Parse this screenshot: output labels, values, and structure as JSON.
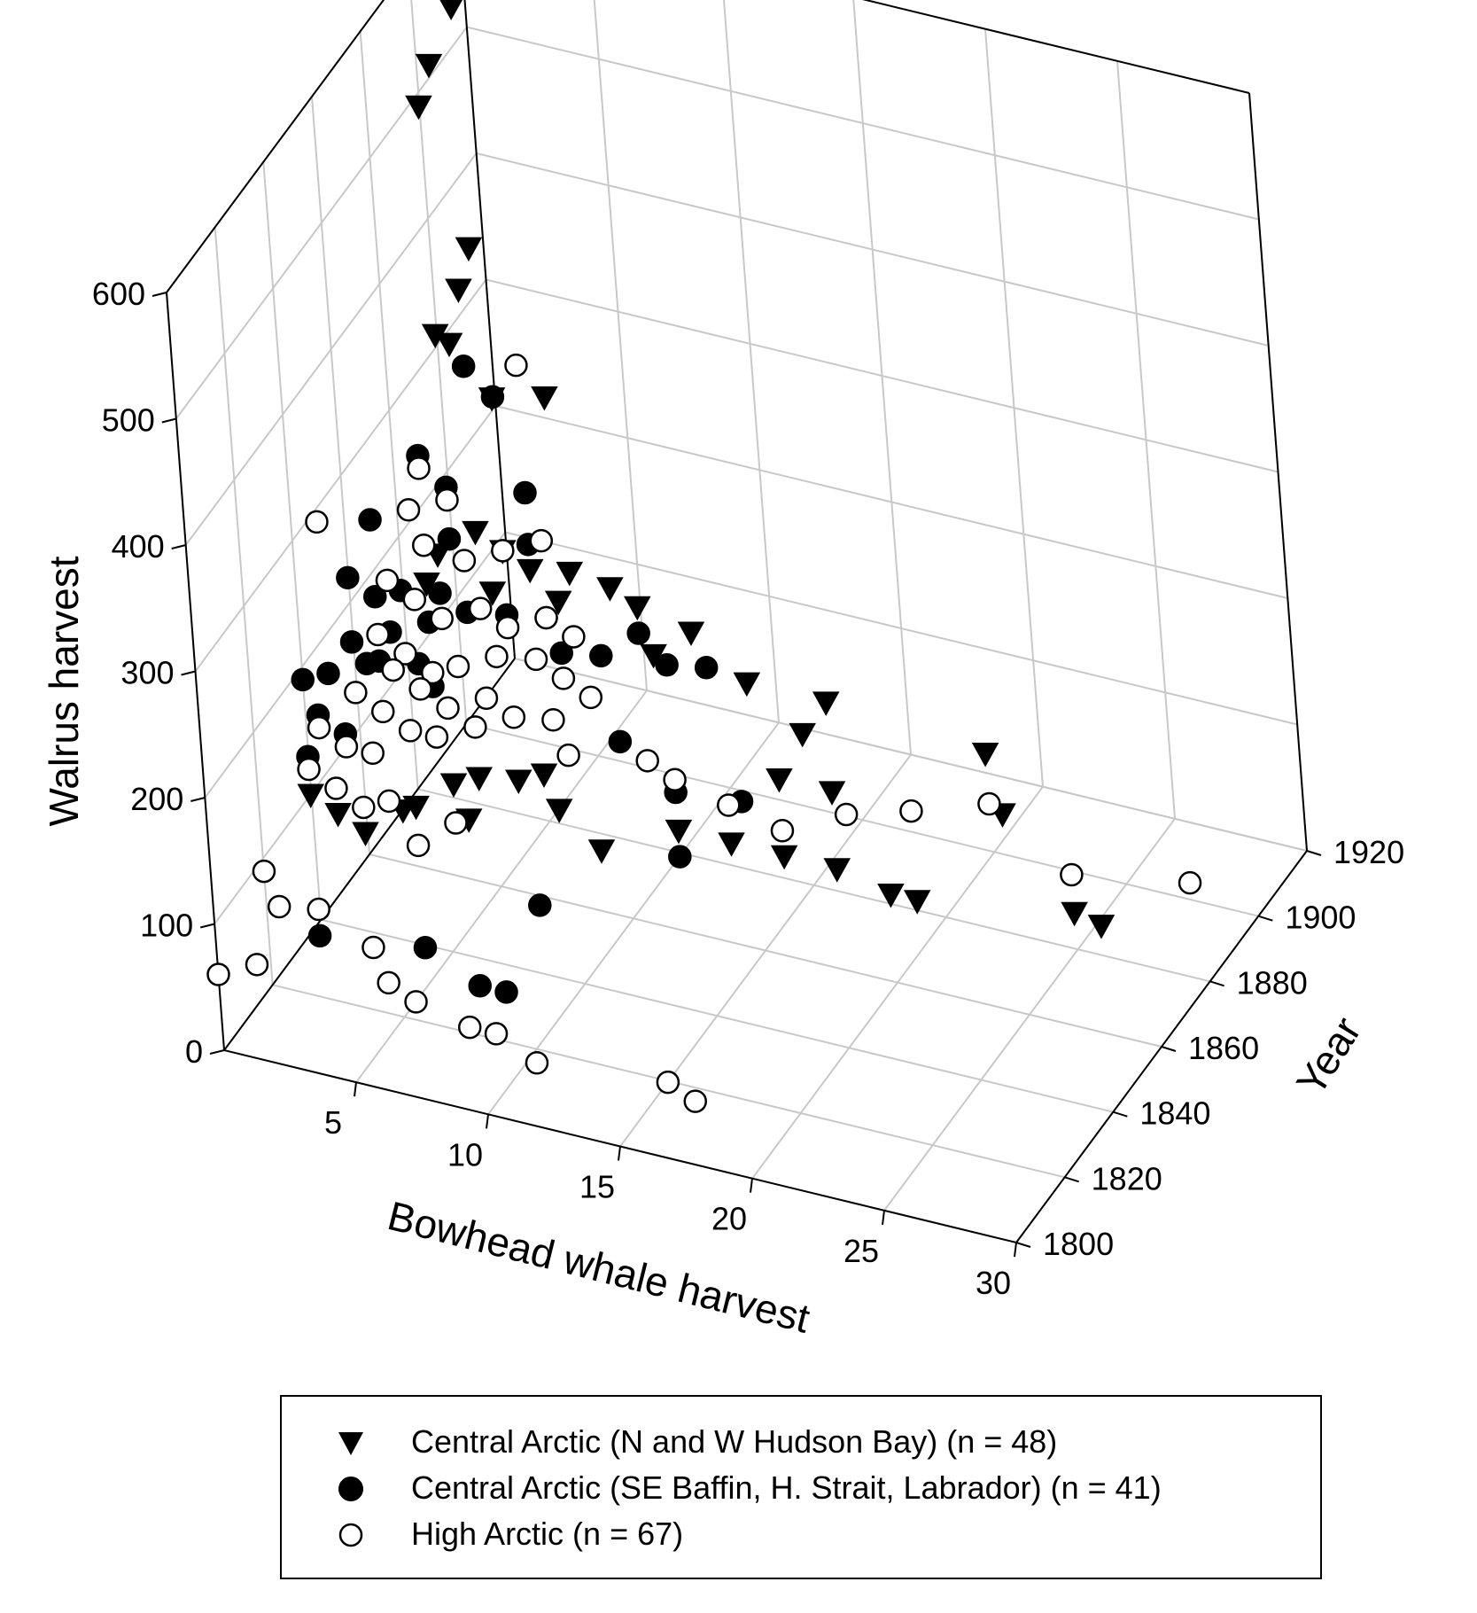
{
  "chart_data": {
    "type": "scatter",
    "projection": "3d",
    "title": "",
    "axes": {
      "x": {
        "label": "Bowhead whale harvest",
        "range": [
          0,
          30
        ],
        "ticks": [
          "5",
          "10",
          "15",
          "20",
          "25",
          "30"
        ]
      },
      "y": {
        "label": "Year",
        "range": [
          1800,
          1920
        ],
        "ticks": [
          "1800",
          "1820",
          "1840",
          "1860",
          "1880",
          "1900",
          "1920"
        ]
      },
      "z": {
        "label": "Walrus harvest",
        "range": [
          0,
          600
        ],
        "ticks": [
          "0",
          "100",
          "200",
          "300",
          "400",
          "500",
          "600"
        ]
      }
    },
    "grid": true,
    "legend_position": "bottom",
    "series": [
      {
        "name": "Central Arctic (N and W Hudson Bay) (n = 48)",
        "marker": "triangle-down",
        "fill": "#000000",
        "points": [
          [
            1,
            1905,
            560
          ],
          [
            1,
            1895,
            540
          ],
          [
            1,
            1890,
            520
          ],
          [
            2,
            1895,
            400
          ],
          [
            2,
            1890,
            380
          ],
          [
            2,
            1880,
            370
          ],
          [
            2,
            1885,
            350
          ],
          [
            4,
            1880,
            330
          ],
          [
            5,
            1890,
            310
          ],
          [
            3,
            1860,
            230
          ],
          [
            3,
            1865,
            240
          ],
          [
            4,
            1870,
            250
          ],
          [
            5,
            1870,
            240
          ],
          [
            5,
            1865,
            220
          ],
          [
            6,
            1870,
            230
          ],
          [
            7,
            1875,
            220
          ],
          [
            7,
            1870,
            210
          ],
          [
            8,
            1880,
            200
          ],
          [
            9,
            1880,
            190
          ],
          [
            10,
            1875,
            170
          ],
          [
            11,
            1880,
            180
          ],
          [
            4,
            1840,
            110
          ],
          [
            5,
            1845,
            120
          ],
          [
            6,
            1840,
            110
          ],
          [
            6,
            1845,
            130
          ],
          [
            7,
            1850,
            120
          ],
          [
            8,
            1850,
            130
          ],
          [
            9,
            1845,
            120
          ],
          [
            13,
            1880,
            150
          ],
          [
            16,
            1880,
            150
          ],
          [
            15,
            1880,
            120
          ],
          [
            15,
            1870,
            110
          ],
          [
            17,
            1870,
            110
          ],
          [
            22,
            1880,
            140
          ],
          [
            23,
            1875,
            110
          ],
          [
            10,
            1850,
            80
          ],
          [
            12,
            1860,
            80
          ],
          [
            14,
            1860,
            80
          ],
          [
            16,
            1860,
            80
          ],
          [
            18,
            1860,
            80
          ],
          [
            20,
            1860,
            70
          ],
          [
            21,
            1860,
            70
          ],
          [
            26,
            1870,
            60
          ],
          [
            27,
            1870,
            55
          ],
          [
            1,
            1830,
            130
          ],
          [
            2,
            1830,
            120
          ],
          [
            3,
            1830,
            110
          ],
          [
            4,
            1835,
            120
          ]
        ]
      },
      {
        "name": "Central Arctic (SE Baffin, H. Strait, Labrador) (n = 41)",
        "marker": "circle",
        "fill": "#000000",
        "points": [
          [
            3,
            1880,
            350
          ],
          [
            3,
            1890,
            300
          ],
          [
            2,
            1870,
            300
          ],
          [
            3,
            1870,
            280
          ],
          [
            1,
            1860,
            270
          ],
          [
            4,
            1860,
            270
          ],
          [
            5,
            1880,
            260
          ],
          [
            6,
            1870,
            250
          ],
          [
            1,
            1850,
            250
          ],
          [
            2,
            1850,
            240
          ],
          [
            3,
            1850,
            250
          ],
          [
            4,
            1850,
            230
          ],
          [
            2,
            1840,
            230
          ],
          [
            3,
            1840,
            220
          ],
          [
            4,
            1845,
            210
          ],
          [
            5,
            1840,
            210
          ],
          [
            1,
            1840,
            200
          ],
          [
            0,
            1840,
            190
          ],
          [
            1,
            1835,
            180
          ],
          [
            2,
            1835,
            170
          ],
          [
            1,
            1830,
            160
          ],
          [
            3,
            1845,
            230
          ],
          [
            4,
            1855,
            240
          ],
          [
            5,
            1855,
            230
          ],
          [
            6,
            1860,
            220
          ],
          [
            7,
            1865,
            210
          ],
          [
            8,
            1860,
            200
          ],
          [
            9,
            1865,
            190
          ],
          [
            10,
            1870,
            200
          ],
          [
            11,
            1870,
            180
          ],
          [
            12,
            1875,
            170
          ],
          [
            10,
            1860,
            140
          ],
          [
            12,
            1860,
            110
          ],
          [
            14,
            1865,
            100
          ],
          [
            13,
            1850,
            90
          ],
          [
            9,
            1835,
            70
          ],
          [
            6,
            1820,
            60
          ],
          [
            8,
            1820,
            40
          ],
          [
            9,
            1820,
            40
          ],
          [
            3,
            1810,
            80
          ],
          [
            2,
            1845,
            200
          ]
        ]
      },
      {
        "name": "High Arctic (n = 67)",
        "marker": "circle",
        "fill": "#ffffff",
        "points": [
          [
            1,
            1840,
            320
          ],
          [
            4,
            1890,
            330
          ],
          [
            2,
            1870,
            290
          ],
          [
            2,
            1865,
            270
          ],
          [
            3,
            1870,
            270
          ],
          [
            3,
            1860,
            260
          ],
          [
            4,
            1865,
            240
          ],
          [
            5,
            1870,
            240
          ],
          [
            6,
            1875,
            240
          ],
          [
            2,
            1855,
            240
          ],
          [
            3,
            1855,
            230
          ],
          [
            4,
            1855,
            220
          ],
          [
            5,
            1860,
            220
          ],
          [
            6,
            1860,
            210
          ],
          [
            7,
            1865,
            210
          ],
          [
            8,
            1865,
            200
          ],
          [
            2,
            1850,
            210
          ],
          [
            3,
            1850,
            200
          ],
          [
            4,
            1850,
            190
          ],
          [
            5,
            1850,
            200
          ],
          [
            6,
            1855,
            200
          ],
          [
            7,
            1860,
            190
          ],
          [
            8,
            1860,
            180
          ],
          [
            9,
            1860,
            170
          ],
          [
            3,
            1845,
            200
          ],
          [
            4,
            1845,
            190
          ],
          [
            5,
            1845,
            180
          ],
          [
            6,
            1850,
            180
          ],
          [
            2,
            1840,
            190
          ],
          [
            3,
            1840,
            180
          ],
          [
            4,
            1840,
            170
          ],
          [
            5,
            1840,
            170
          ],
          [
            6,
            1845,
            170
          ],
          [
            7,
            1850,
            170
          ],
          [
            8,
            1855,
            160
          ],
          [
            1,
            1835,
            170
          ],
          [
            2,
            1835,
            160
          ],
          [
            3,
            1835,
            160
          ],
          [
            1,
            1830,
            150
          ],
          [
            2,
            1830,
            140
          ],
          [
            3,
            1830,
            130
          ],
          [
            4,
            1830,
            140
          ],
          [
            11,
            1860,
            130
          ],
          [
            12,
            1860,
            120
          ],
          [
            14,
            1860,
            110
          ],
          [
            16,
            1860,
            100
          ],
          [
            18,
            1865,
            110
          ],
          [
            20,
            1870,
            110
          ],
          [
            22,
            1880,
            100
          ],
          [
            26,
            1870,
            90
          ],
          [
            29,
            1885,
            60
          ],
          [
            0,
            1820,
            90
          ],
          [
            1,
            1815,
            80
          ],
          [
            2,
            1820,
            70
          ],
          [
            4,
            1820,
            50
          ],
          [
            5,
            1815,
            40
          ],
          [
            6,
            1815,
            30
          ],
          [
            8,
            1815,
            20
          ],
          [
            9,
            1815,
            20
          ],
          [
            11,
            1810,
            20
          ],
          [
            16,
            1810,
            30
          ],
          [
            17,
            1810,
            20
          ],
          [
            1,
            1805,
            60
          ],
          [
            0,
            1800,
            60
          ],
          [
            5,
            1830,
            110
          ],
          [
            6,
            1835,
            120
          ],
          [
            9,
            1850,
            150
          ]
        ]
      }
    ]
  },
  "legend": {
    "items": [
      {
        "marker": "triangle-down",
        "fill": "#000000",
        "label": "Central Arctic (N and W Hudson Bay) (n = 48)"
      },
      {
        "marker": "circle",
        "fill": "#000000",
        "label": "Central Arctic (SE Baffin, H. Strait, Labrador) (n = 41)"
      },
      {
        "marker": "circle",
        "fill": "#ffffff",
        "label": "High Arctic (n = 67)"
      }
    ]
  }
}
